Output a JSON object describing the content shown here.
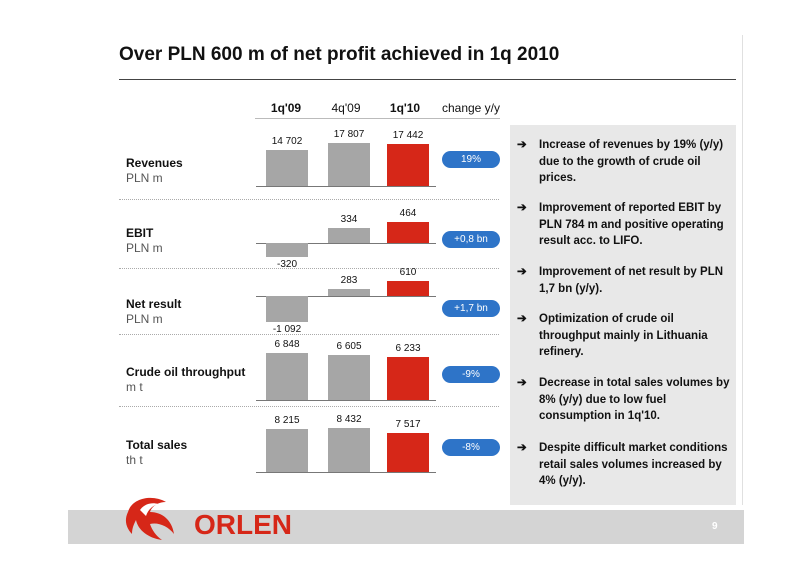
{
  "title": "Over PLN 600 m of net profit achieved in 1q 2010",
  "headers": [
    "1q'09",
    "4q'09",
    "1q'10",
    "change y/y"
  ],
  "rows": [
    {
      "name": "Revenues",
      "unit": "PLN m",
      "labels": [
        "14 702",
        "17 807",
        "17 442"
      ],
      "values": [
        14702,
        17807,
        17442
      ],
      "change": "19%"
    },
    {
      "name": "EBIT",
      "unit": "PLN m",
      "labels": [
        "-320",
        "334",
        "464"
      ],
      "values": [
        -320,
        334,
        464
      ],
      "change": "+0,8 bn"
    },
    {
      "name": "Net result",
      "unit": "PLN m",
      "labels": [
        "-1 092",
        "283",
        "610"
      ],
      "values": [
        -1092,
        283,
        610
      ],
      "change": "+1,7 bn"
    },
    {
      "name": "Crude oil throughput",
      "unit": "m t",
      "labels": [
        "6 848",
        "6 605",
        "6 233"
      ],
      "values": [
        6848,
        6605,
        6233
      ],
      "change": "-9%"
    },
    {
      "name": "Total sales",
      "unit": "th t",
      "labels": [
        "8 215",
        "8 432",
        "7 517"
      ],
      "values": [
        8215,
        8432,
        7517
      ],
      "change": "-8%"
    }
  ],
  "bullets": [
    "Increase of revenues by 19% (y/y) due to the growth of crude oil prices.",
    "Improvement of reported EBIT by PLN 784 m and positive operating result acc. to LIFO.",
    "Improvement of net result by PLN 1,7 bn (y/y).",
    "Optimization of crude oil throughput mainly in Lithuania refinery.",
    "Decrease in total sales volumes by 8% (y/y) due to low fuel consumption in 1q'10.",
    "Despite difficult market conditions retail sales volumes increased by 4% (y/y)."
  ],
  "arrow": "➔",
  "logo_text": "ORLEN",
  "page_number": "9",
  "colors": {
    "prior": "#a6a6a6",
    "current": "#d62718",
    "change_pill": "#2e74c8",
    "brand": "#d62718"
  },
  "icons": {
    "bullet": "arrow-right-icon",
    "logo": "orlen-eagle-icon"
  }
}
